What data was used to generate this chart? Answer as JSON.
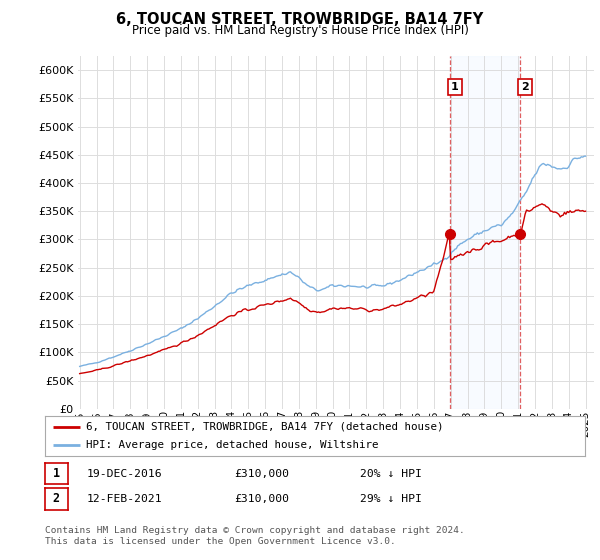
{
  "title": "6, TOUCAN STREET, TROWBRIDGE, BA14 7FY",
  "subtitle": "Price paid vs. HM Land Registry's House Price Index (HPI)",
  "ytick_values": [
    0,
    50000,
    100000,
    150000,
    200000,
    250000,
    300000,
    350000,
    400000,
    450000,
    500000,
    550000,
    600000
  ],
  "ylim": [
    0,
    625000
  ],
  "xlim_start": 1994.9,
  "xlim_end": 2025.5,
  "hpi_color": "#7ab0e0",
  "price_color": "#cc0000",
  "marker1_date": 2016.96,
  "marker1_price": 310000,
  "marker1_label": "1",
  "marker2_date": 2021.12,
  "marker2_price": 310000,
  "marker2_label": "2",
  "legend_line1": "6, TOUCAN STREET, TROWBRIDGE, BA14 7FY (detached house)",
  "legend_line2": "HPI: Average price, detached house, Wiltshire",
  "table_row1": [
    "1",
    "19-DEC-2016",
    "£310,000",
    "20% ↓ HPI"
  ],
  "table_row2": [
    "2",
    "12-FEB-2021",
    "£310,000",
    "29% ↓ HPI"
  ],
  "footnote": "Contains HM Land Registry data © Crown copyright and database right 2024.\nThis data is licensed under the Open Government Licence v3.0.",
  "bg_color": "#ffffff",
  "grid_color": "#dddddd",
  "shade_color": "#ddeeff"
}
